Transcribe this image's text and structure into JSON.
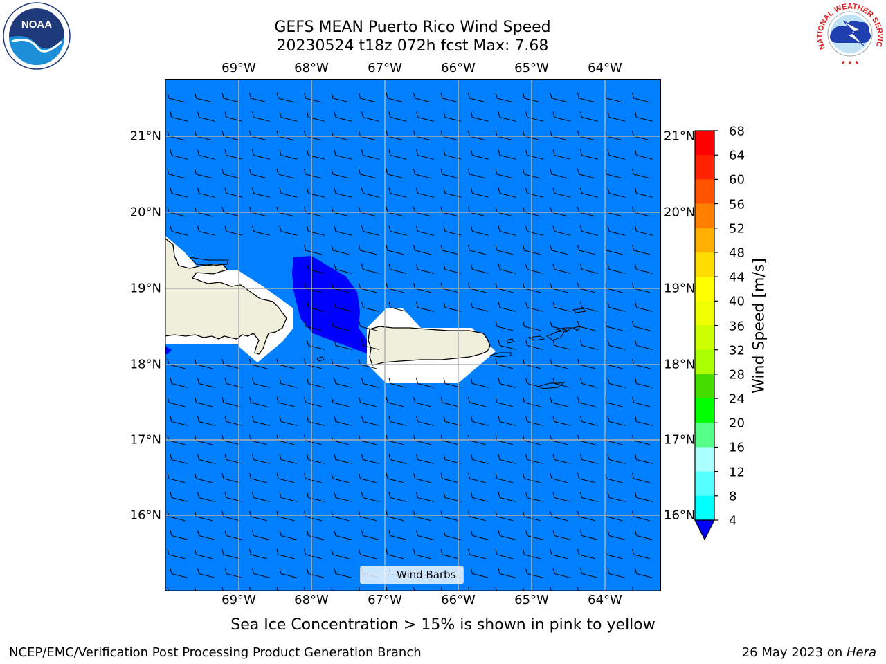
{
  "title": {
    "line1": "GEFS MEAN Puerto Rico Wind Speed",
    "line2": "20230524 t18z 072h fcst   Max: 7.68"
  },
  "map": {
    "lon_labels": [
      "69°W",
      "68°W",
      "67°W",
      "66°W",
      "65°W",
      "64°W"
    ],
    "lat_labels": [
      "21°N",
      "20°N",
      "19°N",
      "18°N",
      "17°N",
      "16°N"
    ],
    "ocean_color": "#0080ff",
    "low_wind_color": "#0000ff",
    "land_color": "#efefdb",
    "legend_label": "Wind Barbs"
  },
  "colorbar": {
    "title": "Wind Speed [m/s]",
    "labels": [
      "68",
      "64",
      "60",
      "56",
      "52",
      "48",
      "44",
      "40",
      "36",
      "32",
      "28",
      "24",
      "20",
      "16",
      "12",
      "8",
      "4"
    ],
    "colors": [
      "#ff0000",
      "#ff2200",
      "#ff5500",
      "#ff8000",
      "#ffb000",
      "#ffdd00",
      "#ffff00",
      "#eeff00",
      "#ccff00",
      "#aaff00",
      "#44dd00",
      "#00ff00",
      "#55ff88",
      "#aaffff",
      "#55ffff",
      "#00ffff",
      "#0080ff"
    ],
    "extend_color": "#0000ff"
  },
  "logos": {
    "noaa_text": "NOAA",
    "nws_text": "NATIONAL WEATHER SERVICE"
  },
  "footer": {
    "subtitle": "Sea Ice Concentration > 15% is shown in pink to yellow",
    "left": "NCEP/EMC/Verification Post Processing Product Generation Branch",
    "right_date": "26 May 2023 on ",
    "right_machine": "Hera"
  }
}
